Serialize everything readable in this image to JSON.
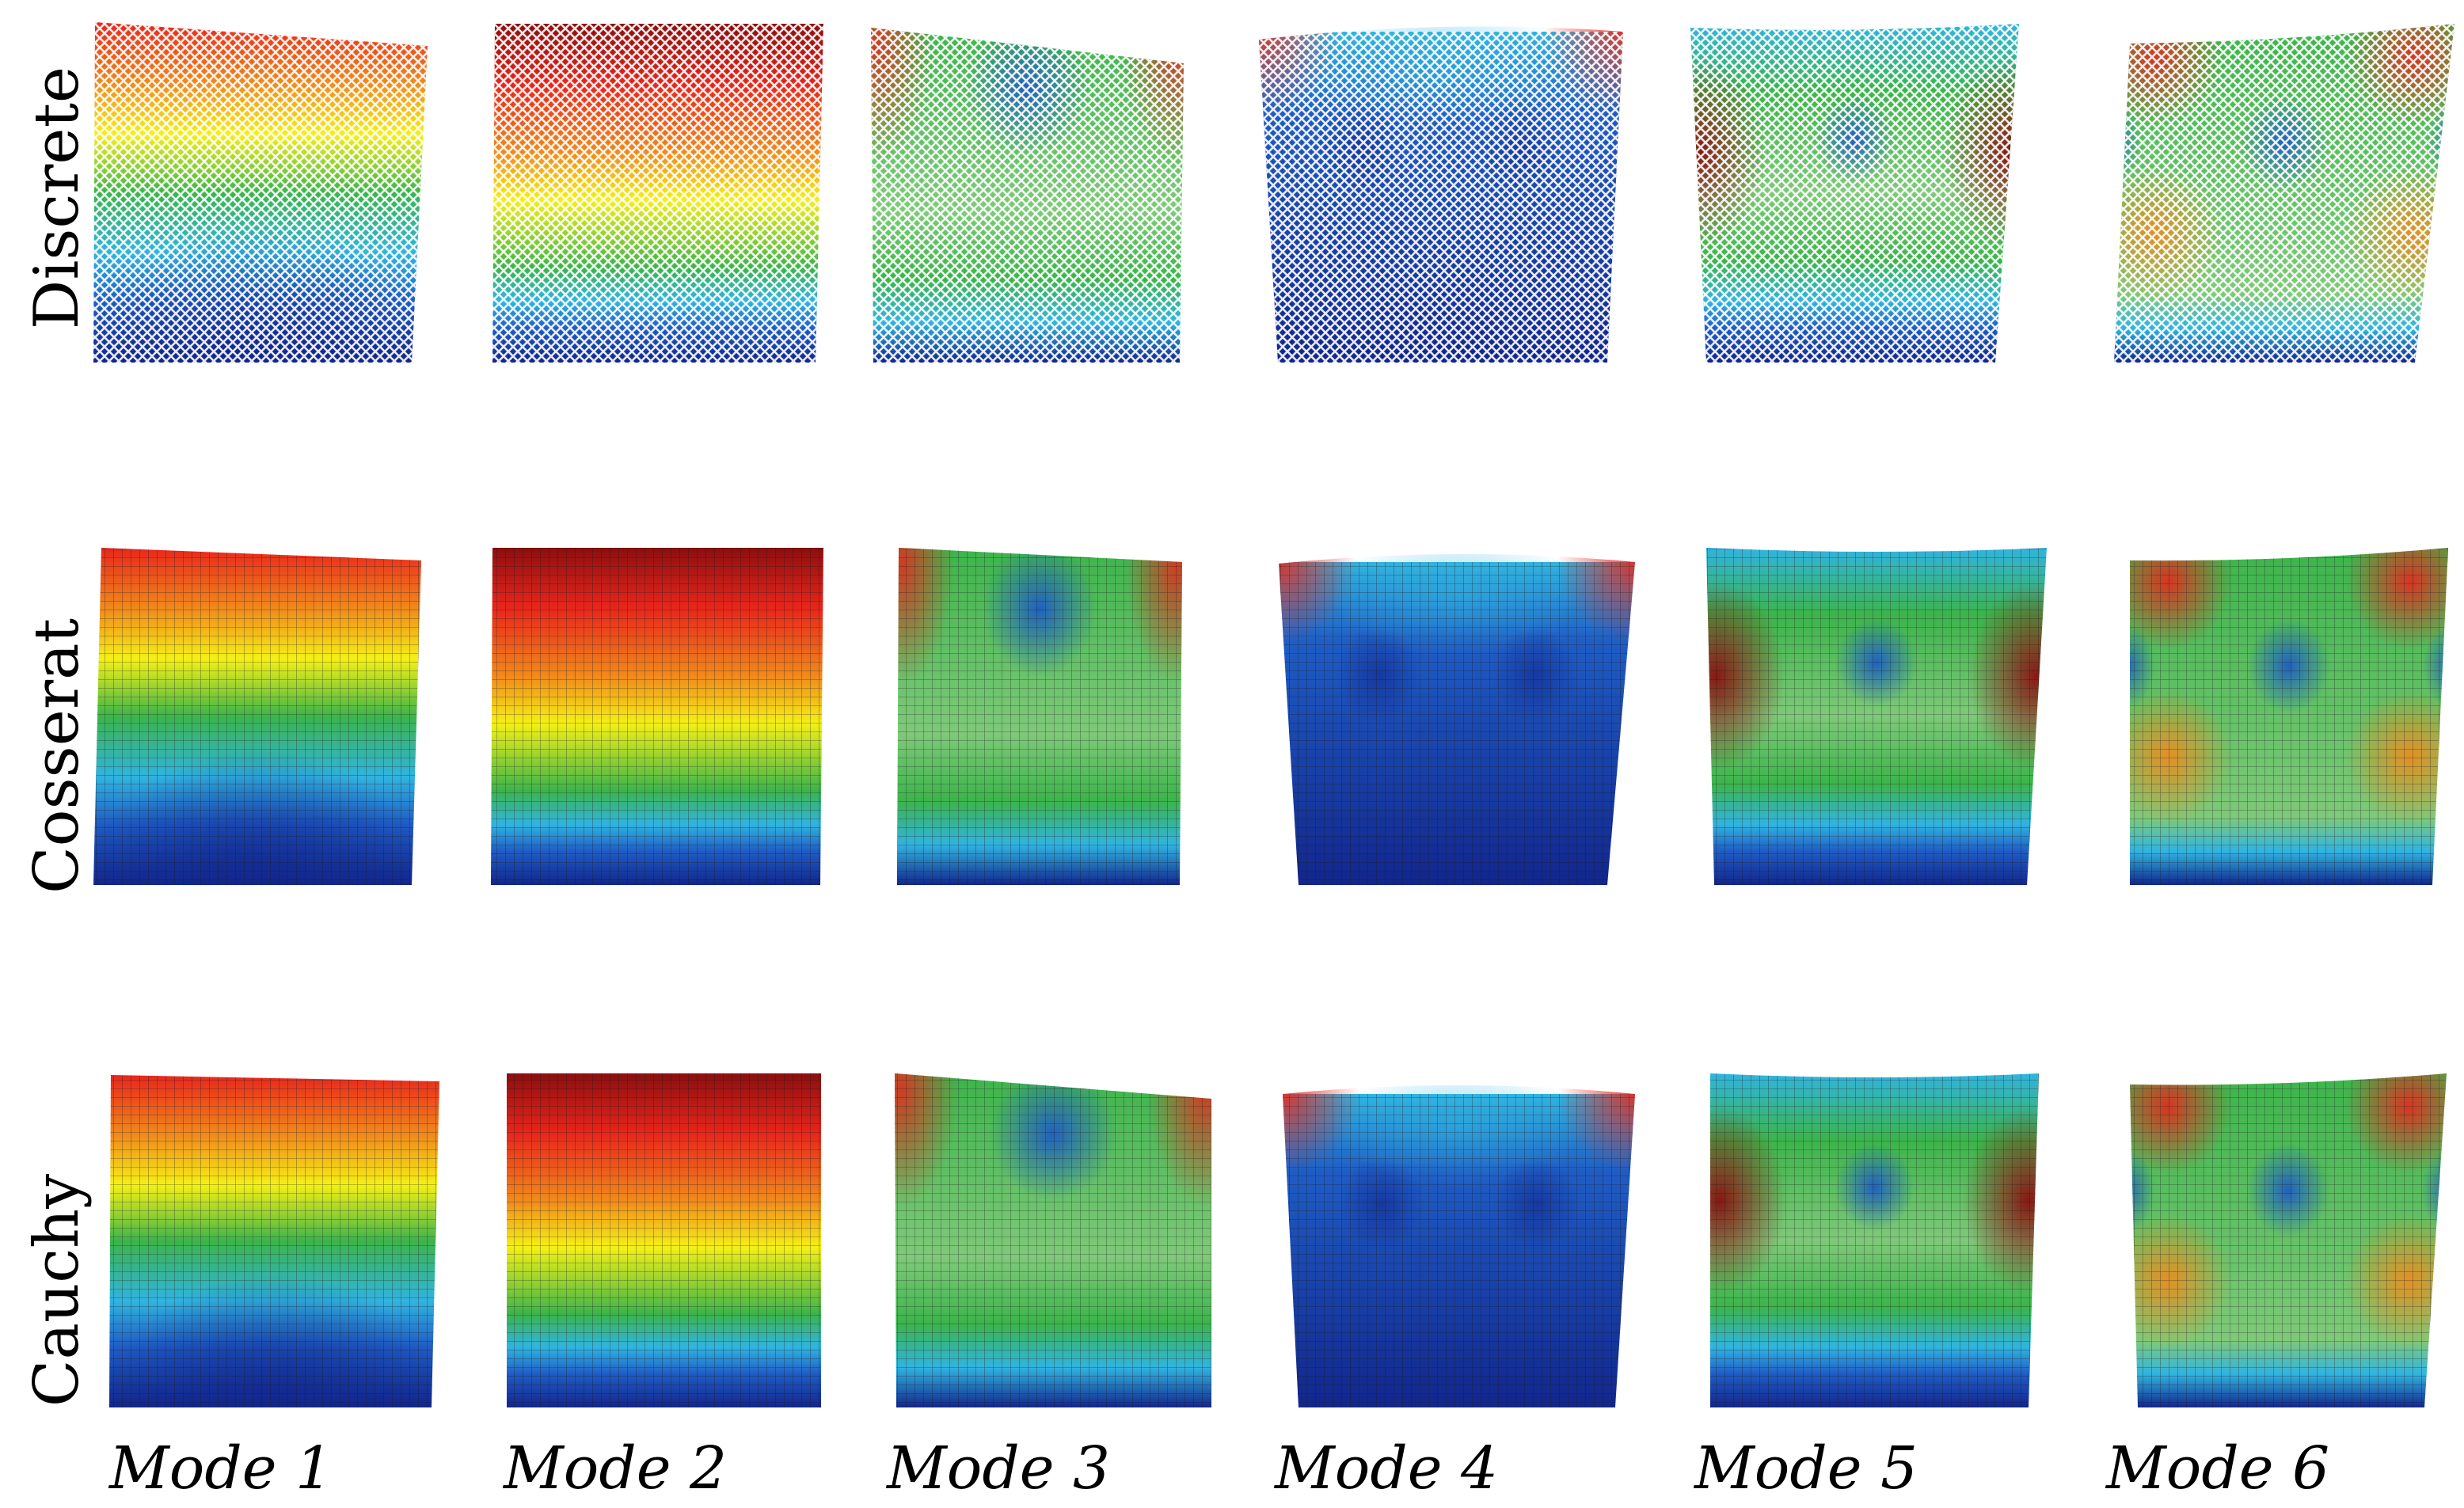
{
  "figure": {
    "rows": [
      {
        "label": "Discrete",
        "style": "lattice"
      },
      {
        "label": "Cosserat",
        "style": "mesh"
      },
      {
        "label": "Cauchy",
        "style": "mesh"
      }
    ],
    "modes": [
      {
        "label": "Mode 1"
      },
      {
        "label": "Mode 2"
      },
      {
        "label": "Mode 3"
      },
      {
        "label": "Mode 4"
      },
      {
        "label": "Mode 5"
      },
      {
        "label": "Mode 6"
      }
    ],
    "colormap": [
      "#12268c",
      "#1f5cc4",
      "#31b4e0",
      "#7fc97a",
      "#3cb44b",
      "#f5f016",
      "#f08a1c",
      "#e8261c",
      "#8b0f0f"
    ]
  }
}
